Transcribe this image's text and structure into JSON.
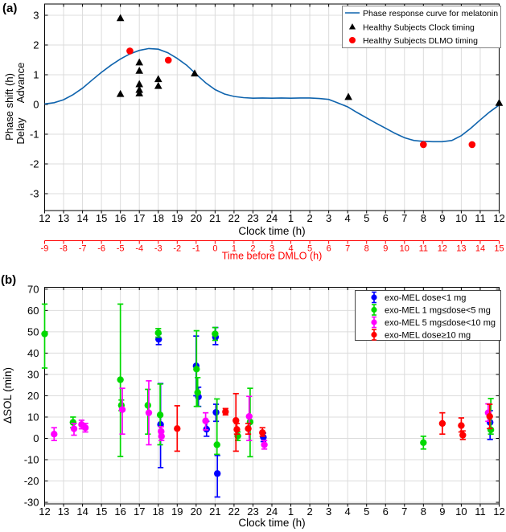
{
  "figure": {
    "panel_a_tag": "(a)",
    "panel_b_tag": "(b)",
    "background": "#ffffff"
  },
  "chart_data": [
    {
      "panel": "a",
      "type": "line",
      "xlabel": "Clock time (h)",
      "ylabel": "Phase shift (h)",
      "ylabel_advance": "Advance",
      "ylabel_delay": "Delay",
      "x_tick_labels": [
        "12",
        "13",
        "14",
        "15",
        "16",
        "17",
        "18",
        "19",
        "20",
        "21",
        "22",
        "23",
        "24",
        "1",
        "2",
        "3",
        "4",
        "5",
        "6",
        "7",
        "8",
        "9",
        "10",
        "11",
        "12"
      ],
      "x_units": "hours after 12:00 noon (0-24)",
      "yticks": [
        -3,
        -2,
        -1,
        0,
        1,
        2,
        3
      ],
      "ylim": [
        -3.57,
        3.38
      ],
      "grid": true,
      "secondary_axis": {
        "label": "Time before DMLO (h)",
        "color": "#ff0000",
        "tick_labels": [
          "-9",
          "-8",
          "-7",
          "-6",
          "-5",
          "-4",
          "-3",
          "-2",
          "-1",
          "0",
          "1",
          "2",
          "3",
          "4",
          "5",
          "6",
          "7",
          "8",
          "9",
          "10",
          "11",
          "12",
          "13",
          "14",
          "15"
        ]
      },
      "legend": [
        {
          "label": "Phase response curve for melatonin",
          "marker": "line",
          "color": "#0e63ad"
        },
        {
          "label": "Healthy Subjects Clock timing",
          "marker": "triangle",
          "color": "#000000"
        },
        {
          "label": "Healthy Subjects DLMO timing",
          "marker": "circle",
          "color": "#ff0000"
        }
      ],
      "series": [
        {
          "name": "Phase response curve for melatonin",
          "style": "line",
          "color": "#0e63ad",
          "points": [
            [
              0,
              0.02
            ],
            [
              0.5,
              0.06
            ],
            [
              1,
              0.16
            ],
            [
              1.5,
              0.33
            ],
            [
              2,
              0.55
            ],
            [
              2.5,
              0.82
            ],
            [
              3,
              1.08
            ],
            [
              3.5,
              1.32
            ],
            [
              4,
              1.53
            ],
            [
              4.5,
              1.7
            ],
            [
              5,
              1.82
            ],
            [
              5.5,
              1.88
            ],
            [
              6,
              1.86
            ],
            [
              6.5,
              1.74
            ],
            [
              7,
              1.55
            ],
            [
              7.5,
              1.32
            ],
            [
              8,
              1.02
            ],
            [
              8.5,
              0.73
            ],
            [
              9,
              0.5
            ],
            [
              9.5,
              0.35
            ],
            [
              10,
              0.27
            ],
            [
              10.5,
              0.23
            ],
            [
              11,
              0.21
            ],
            [
              11.5,
              0.22
            ],
            [
              12,
              0.21
            ],
            [
              12.5,
              0.22
            ],
            [
              13,
              0.21
            ],
            [
              13.5,
              0.22
            ],
            [
              14,
              0.22
            ],
            [
              14.5,
              0.2
            ],
            [
              15,
              0.17
            ],
            [
              15.5,
              0.05
            ],
            [
              16,
              -0.08
            ],
            [
              16.5,
              -0.27
            ],
            [
              17,
              -0.45
            ],
            [
              17.5,
              -0.63
            ],
            [
              18,
              -0.8
            ],
            [
              18.5,
              -0.97
            ],
            [
              19,
              -1.12
            ],
            [
              19.5,
              -1.21
            ],
            [
              20,
              -1.24
            ],
            [
              20.5,
              -1.25
            ],
            [
              21,
              -1.25
            ],
            [
              21.5,
              -1.21
            ],
            [
              22,
              -1.05
            ],
            [
              22.5,
              -0.8
            ],
            [
              23,
              -0.52
            ],
            [
              23.5,
              -0.25
            ],
            [
              24,
              -0.02
            ]
          ]
        },
        {
          "name": "Healthy Subjects Clock timing",
          "style": "triangle",
          "color": "#000000",
          "points": [
            [
              4,
              2.9
            ],
            [
              4,
              0.35
            ],
            [
              5,
              1.41
            ],
            [
              5,
              1.13
            ],
            [
              5,
              0.68
            ],
            [
              5,
              0.49
            ],
            [
              5,
              0.37
            ],
            [
              6,
              0.85
            ],
            [
              6,
              0.62
            ],
            [
              7.92,
              1.04
            ],
            [
              16.04,
              0.25
            ],
            [
              24,
              0.05
            ]
          ]
        },
        {
          "name": "Healthy Subjects DLMO timing",
          "style": "circle",
          "color": "#ff0000",
          "points": [
            [
              4.5,
              1.8
            ],
            [
              6.53,
              1.49
            ],
            [
              20,
              -1.35
            ],
            [
              22.57,
              -1.35
            ]
          ]
        }
      ]
    },
    {
      "panel": "b",
      "type": "scatter",
      "subtype": "errorbar",
      "xlabel": "Clock time (h)",
      "ylabel": "ΔSOL (min)",
      "x_tick_labels": [
        "12",
        "13",
        "14",
        "15",
        "16",
        "17",
        "18",
        "19",
        "20",
        "21",
        "22",
        "23",
        "24",
        "1",
        "2",
        "3",
        "4",
        "5",
        "6",
        "7",
        "8",
        "9",
        "10",
        "11",
        "12"
      ],
      "x_units": "hours after 12:00 noon (0-24)",
      "yticks": [
        -30,
        -20,
        -10,
        0,
        10,
        20,
        30,
        40,
        50,
        60,
        70
      ],
      "ylim": [
        -30.7,
        70.9
      ],
      "grid": true,
      "legend": [
        {
          "label": "exo-MEL dose<1 mg",
          "marker": "errorbar-circle",
          "color": "#0000ff"
        },
        {
          "label": "exo-MEL 1 mg≤dose<5 mg",
          "marker": "errorbar-circle",
          "color": "#00d900"
        },
        {
          "label": "exo-MEL 5 mg≤dose<10 mg",
          "marker": "errorbar-circle",
          "color": "#ff00ff"
        },
        {
          "label": "exo-MEL dose≥10 mg",
          "marker": "errorbar-circle",
          "color": "#ff0000"
        }
      ],
      "series": [
        {
          "name": "exo-MEL dose<1 mg",
          "color": "#0000ff",
          "points": [
            {
              "x": 6.02,
              "y": 46.5,
              "lo": 44,
              "hi": 49
            },
            {
              "x": 6.12,
              "y": 6.5,
              "lo": -13.7,
              "hi": 25.7
            },
            {
              "x": 8.0,
              "y": 34,
              "lo": 20,
              "hi": 48
            },
            {
              "x": 8.12,
              "y": 19.5,
              "lo": 15,
              "hi": 24
            },
            {
              "x": 8.55,
              "y": 4.3,
              "lo": 1,
              "hi": 8
            },
            {
              "x": 9.02,
              "y": 47.5,
              "lo": 44,
              "hi": 52
            },
            {
              "x": 9.05,
              "y": 12.2,
              "lo": 8,
              "hi": 16
            },
            {
              "x": 9.12,
              "y": -16.5,
              "lo": -27.5,
              "hi": -8
            },
            {
              "x": 11.55,
              "y": 0.5,
              "lo": -1.5,
              "hi": 2.5
            },
            {
              "x": 23.52,
              "y": 7.5,
              "lo": -0.5,
              "hi": 13
            }
          ]
        },
        {
          "name": "exo-MEL 1 mg≤dose<5 mg",
          "color": "#00d900",
          "points": [
            {
              "x": 0.0,
              "y": 49,
              "lo": 33,
              "hi": 63
            },
            {
              "x": 1.5,
              "y": 7.5,
              "lo": 5,
              "hi": 10
            },
            {
              "x": 4.0,
              "y": 27.5,
              "lo": -8.5,
              "hi": 63
            },
            {
              "x": 4.05,
              "y": 15.5,
              "lo": 13,
              "hi": 18
            },
            {
              "x": 5.45,
              "y": 15.5,
              "lo": 2,
              "hi": 23
            },
            {
              "x": 6.0,
              "y": 49.5,
              "lo": 47.5,
              "hi": 51.5
            },
            {
              "x": 6.1,
              "y": 11,
              "lo": -3,
              "hi": 25.5
            },
            {
              "x": 8.02,
              "y": 32.5,
              "lo": 15,
              "hi": 50.5
            },
            {
              "x": 8.08,
              "y": 21.5,
              "lo": 15,
              "hi": 28.5
            },
            {
              "x": 9.0,
              "y": 49,
              "lo": 46,
              "hi": 52
            },
            {
              "x": 9.1,
              "y": -3,
              "lo": -7.5,
              "hi": 18.5
            },
            {
              "x": 10.2,
              "y": 1.1,
              "lo": -1,
              "hi": 3
            },
            {
              "x": 10.85,
              "y": 7.7,
              "lo": -8.6,
              "hi": 23.5
            },
            {
              "x": 20.0,
              "y": -2,
              "lo": -5,
              "hi": 1
            },
            {
              "x": 23.56,
              "y": 4,
              "lo": 2,
              "hi": 18.7
            }
          ]
        },
        {
          "name": "exo-MEL 5 mg≤dose<10 mg",
          "color": "#ff00ff",
          "points": [
            {
              "x": 0.5,
              "y": 2,
              "lo": -1,
              "hi": 5
            },
            {
              "x": 1.55,
              "y": 4.5,
              "lo": 1.5,
              "hi": 7
            },
            {
              "x": 1.95,
              "y": 6.5,
              "lo": 4.5,
              "hi": 8.5
            },
            {
              "x": 2.15,
              "y": 5,
              "lo": 3,
              "hi": 7
            },
            {
              "x": 4.1,
              "y": 13.5,
              "lo": 2,
              "hi": 23.5
            },
            {
              "x": 5.5,
              "y": 12,
              "lo": -3,
              "hi": 27
            },
            {
              "x": 6.15,
              "y": 3.3,
              "lo": 1,
              "hi": 5.5
            },
            {
              "x": 6.17,
              "y": 1.0,
              "lo": -1,
              "hi": 3
            },
            {
              "x": 8.5,
              "y": 8.2,
              "lo": 4,
              "hi": 12
            },
            {
              "x": 10.8,
              "y": 10.3,
              "lo": -1,
              "hi": 19.7
            },
            {
              "x": 11.6,
              "y": -3,
              "lo": -5,
              "hi": -1
            },
            {
              "x": 23.42,
              "y": 12,
              "lo": 8,
              "hi": 16.2
            }
          ]
        },
        {
          "name": "exo-MEL dose≥10 mg",
          "color": "#ff0000",
          "points": [
            {
              "x": 7.0,
              "y": 4.6,
              "lo": -6,
              "hi": 15.3
            },
            {
              "x": 9.55,
              "y": 12.5,
              "lo": 11,
              "hi": 14
            },
            {
              "x": 10.1,
              "y": 8.4,
              "lo": -6,
              "hi": 21
            },
            {
              "x": 10.15,
              "y": 4.2,
              "lo": 2,
              "hi": 7
            },
            {
              "x": 10.75,
              "y": 4.6,
              "lo": 2,
              "hi": 7
            },
            {
              "x": 11.5,
              "y": 2.7,
              "lo": 1,
              "hi": 5
            },
            {
              "x": 21.0,
              "y": 7,
              "lo": 2,
              "hi": 12
            },
            {
              "x": 22.0,
              "y": 6,
              "lo": 3,
              "hi": 9.6
            },
            {
              "x": 22.08,
              "y": 1.5,
              "lo": -0.5,
              "hi": 3.5
            },
            {
              "x": 23.5,
              "y": 10.3,
              "lo": 4.6,
              "hi": 16
            }
          ]
        }
      ]
    }
  ]
}
